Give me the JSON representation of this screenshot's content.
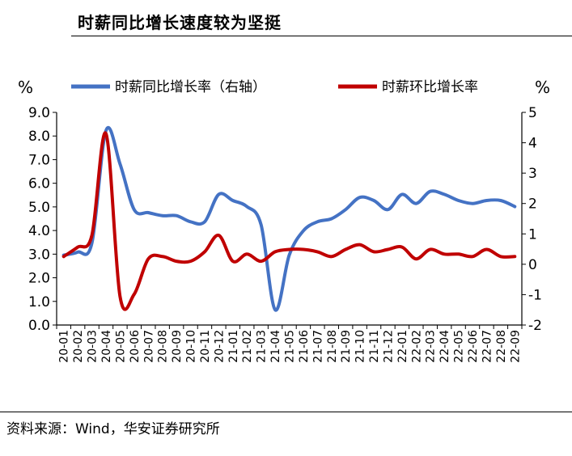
{
  "header": {
    "title": "时薪同比增长速度较为坚挺"
  },
  "footer": {
    "source": "资料来源：Wind，华安证券研究所"
  },
  "colors": {
    "yoy": "#4472C4",
    "mom": "#C00000",
    "axis": "#000000"
  },
  "chart_data": {
    "type": "line",
    "categories": [
      "20-01",
      "20-02",
      "20-03",
      "20-04",
      "20-05",
      "20-06",
      "20-07",
      "20-08",
      "20-09",
      "20-10",
      "20-11",
      "20-12",
      "21-01",
      "21-02",
      "21-03",
      "21-04",
      "21-05",
      "21-06",
      "21-07",
      "21-08",
      "21-09",
      "21-10",
      "21-11",
      "21-12",
      "22-01",
      "22-02",
      "22-03",
      "22-04",
      "22-05",
      "22-06",
      "22-07",
      "22-08",
      "22-09"
    ],
    "left_axis": {
      "unit": "%",
      "min": 0,
      "max": 9,
      "step": 1,
      "ticks": [
        "0.0",
        "1.0",
        "2.0",
        "3.0",
        "4.0",
        "5.0",
        "6.0",
        "7.0",
        "8.0",
        "9.0"
      ]
    },
    "right_axis": {
      "unit": "%",
      "min": -2,
      "max": 5,
      "step": 1,
      "ticks": [
        "-2",
        "-1",
        "0",
        "1",
        "2",
        "3",
        "4",
        "5"
      ]
    },
    "legend_position": "top",
    "series": [
      {
        "name": "时薪同比增长率（右轴）",
        "axis": "right",
        "color": "#4472C4",
        "values": [
          0.3,
          0.4,
          0.7,
          4.4,
          3.3,
          1.8,
          1.7,
          1.6,
          1.6,
          1.4,
          1.4,
          2.3,
          2.1,
          1.9,
          1.3,
          -1.5,
          0.3,
          1.1,
          1.4,
          1.5,
          1.8,
          2.2,
          2.1,
          1.8,
          2.3,
          2.0,
          2.4,
          2.3,
          2.1,
          2.0,
          2.1,
          2.1,
          1.9
        ]
      },
      {
        "name": "时薪环比增长率",
        "axis": "left",
        "color": "#C00000",
        "values": [
          2.9,
          3.3,
          3.8,
          8.1,
          1.2,
          1.3,
          2.8,
          2.9,
          2.7,
          2.7,
          3.1,
          3.8,
          2.7,
          3.0,
          2.7,
          3.1,
          3.2,
          3.2,
          3.1,
          2.9,
          3.2,
          3.4,
          3.1,
          3.2,
          3.3,
          2.8,
          3.2,
          3.0,
          3.0,
          2.9,
          3.2,
          2.9,
          2.9
        ]
      }
    ]
  }
}
